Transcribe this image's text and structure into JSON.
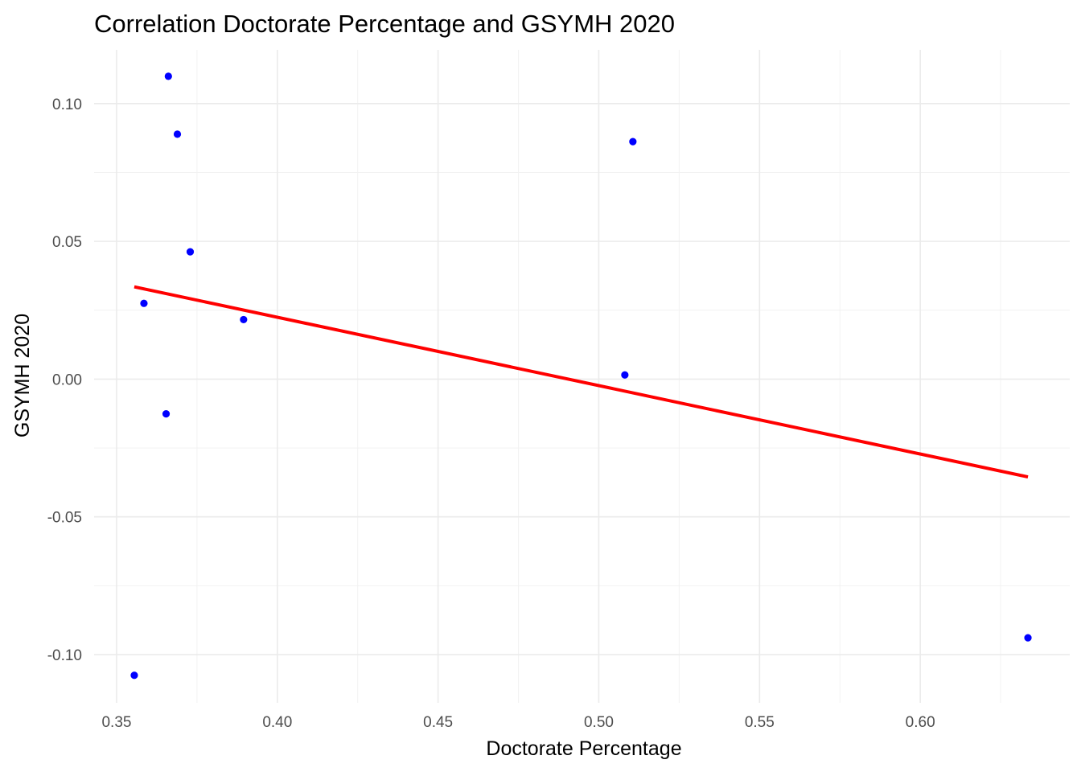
{
  "chart_data": {
    "type": "scatter",
    "title": "Correlation Doctorate Percentage and GSYMH 2020",
    "xlabel": "Doctorate Percentage",
    "ylabel": "GSYMH 2020",
    "xlim": [
      0.343,
      0.6465
    ],
    "ylim": [
      -0.1175,
      0.1195
    ],
    "x_ticks": [
      0.35,
      0.4,
      0.45,
      0.5,
      0.55,
      0.6
    ],
    "x_tick_labels": [
      "0.35",
      "0.40",
      "0.45",
      "0.50",
      "0.55",
      "0.60"
    ],
    "x_minor_ticks": [
      0.375,
      0.425,
      0.475,
      0.525,
      0.575,
      0.625
    ],
    "y_ticks": [
      -0.1,
      -0.05,
      0.0,
      0.05,
      0.1
    ],
    "y_tick_labels": [
      "-0.10",
      "-0.05",
      "0.00",
      "0.05",
      "0.10"
    ],
    "y_minor_ticks": [
      -0.075,
      -0.025,
      0.025,
      0.075
    ],
    "grid": true,
    "point_color": "#0000ff",
    "line_color": "#ff0000",
    "points": [
      {
        "x": 0.3555,
        "y": -0.1075
      },
      {
        "x": 0.3585,
        "y": 0.0275
      },
      {
        "x": 0.3654,
        "y": -0.0126
      },
      {
        "x": 0.3661,
        "y": 0.1099
      },
      {
        "x": 0.3689,
        "y": 0.0889
      },
      {
        "x": 0.3729,
        "y": 0.0462
      },
      {
        "x": 0.3895,
        "y": 0.0216
      },
      {
        "x": 0.5081,
        "y": 0.0015
      },
      {
        "x": 0.5106,
        "y": 0.0862
      },
      {
        "x": 0.6335,
        "y": -0.0939
      }
    ],
    "trendline": {
      "x": [
        0.3555,
        0.6335
      ],
      "y": [
        0.0335,
        -0.0355
      ]
    }
  }
}
